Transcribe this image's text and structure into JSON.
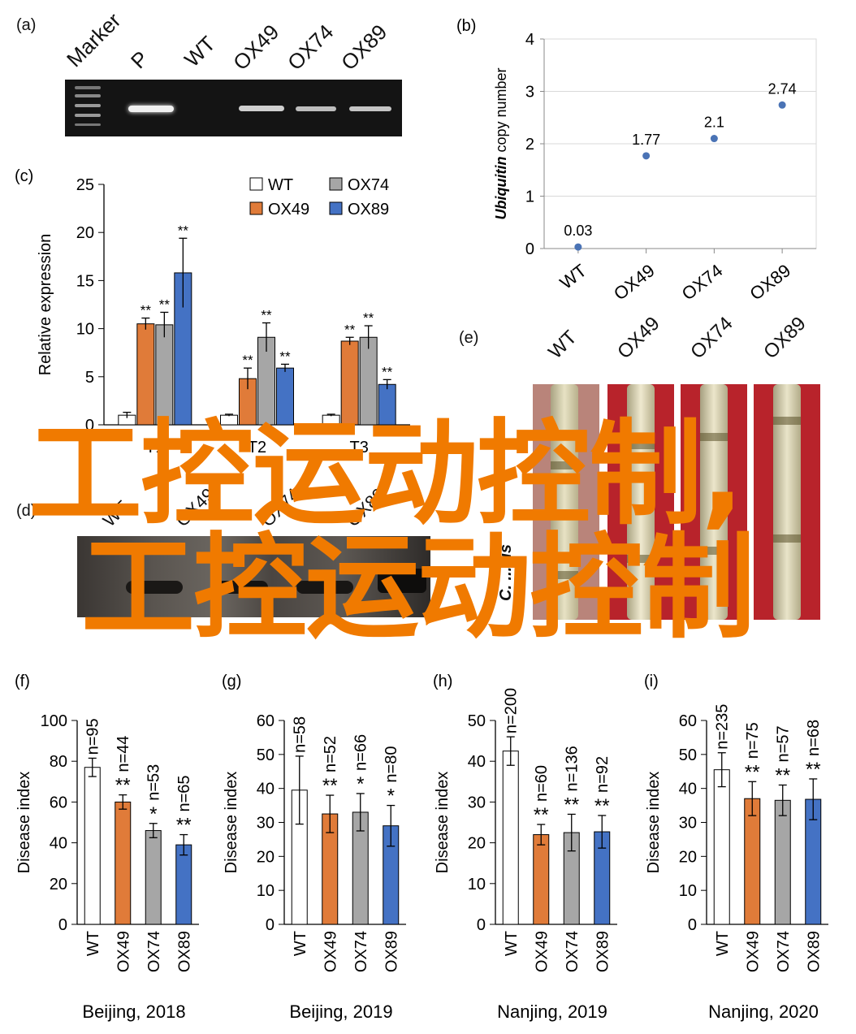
{
  "panel_a": {
    "tag": "(a)",
    "lanes": [
      "Marker",
      "P",
      "WT",
      "OX49",
      "OX74",
      "OX89"
    ]
  },
  "panel_d": {
    "tag": "(d)",
    "lanes": [
      "WT",
      "OX49",
      "OX74",
      "OX89"
    ]
  },
  "panel_e": {
    "tag": "(e)",
    "lanes": [
      "WT",
      "OX49",
      "OX74",
      "OX89"
    ],
    "side_label": "C. ... lis"
  },
  "watermark": {
    "line1": "工控运动控制,",
    "line2": "工控运动控制"
  },
  "colors": {
    "WT": "#ffffff",
    "OX49": "#e07b39",
    "OX74": "#a6a6a6",
    "OX89": "#4472c4",
    "point": "#4a73b5"
  },
  "chart_data": [
    {
      "id": "b",
      "tag": "(b)",
      "type": "scatter",
      "categories": [
        "WT",
        "OX49",
        "OX74",
        "OX89"
      ],
      "values": [
        0.03,
        1.77,
        2.1,
        2.74
      ],
      "data_labels": [
        "0.03",
        "1.77",
        "2.1",
        "2.74"
      ],
      "ylabel_italic": "Ubiquitin",
      "ylabel_rest": " copy number",
      "ylim": [
        0,
        4
      ],
      "yticks": [
        "0",
        "1",
        "2",
        "3",
        "4"
      ],
      "grid": true
    },
    {
      "id": "c",
      "tag": "(c)",
      "type": "bar",
      "groups": [
        "T1",
        "T2",
        "T3"
      ],
      "ylabel": "Relative expression",
      "ylim": [
        0,
        25
      ],
      "yticks": [
        "0",
        "5",
        "10",
        "15",
        "20",
        "25"
      ],
      "legend": [
        "WT",
        "OX74",
        "OX49",
        "OX89"
      ],
      "series": [
        {
          "name": "WT",
          "values": [
            1.0,
            1.0,
            1.0
          ],
          "errors": [
            0.3,
            0.1,
            0.1
          ],
          "sig": [
            "",
            "",
            ""
          ]
        },
        {
          "name": "OX49",
          "values": [
            10.5,
            4.8,
            8.7
          ],
          "errors": [
            0.6,
            1.1,
            0.4
          ],
          "sig": [
            "**",
            "**",
            "**"
          ]
        },
        {
          "name": "OX74",
          "values": [
            10.4,
            9.1,
            9.1
          ],
          "errors": [
            1.3,
            1.5,
            1.2
          ],
          "sig": [
            "**",
            "**",
            "**"
          ]
        },
        {
          "name": "OX89",
          "values": [
            15.8,
            5.9,
            4.2
          ],
          "errors": [
            3.6,
            0.4,
            0.5
          ],
          "sig": [
            "**",
            "**",
            "**"
          ]
        }
      ]
    },
    {
      "id": "f",
      "tag": "(f)",
      "type": "bar",
      "categories": [
        "WT",
        "OX49",
        "OX74",
        "OX89"
      ],
      "values": [
        77,
        60,
        46,
        39
      ],
      "errors": [
        4.5,
        3.5,
        3.5,
        5.0
      ],
      "n_labels": [
        "n=95",
        "n=44",
        "n=53",
        "n=65"
      ],
      "sig": [
        "",
        "**",
        "*",
        "**"
      ],
      "ylabel": "Disease index",
      "ylim": [
        0,
        100
      ],
      "yticks": [
        "0",
        "20",
        "40",
        "60",
        "80",
        "100"
      ],
      "xlabel": "Beijing, 2018"
    },
    {
      "id": "g",
      "tag": "(g)",
      "type": "bar",
      "categories": [
        "WT",
        "OX49",
        "OX74",
        "OX89"
      ],
      "values": [
        39.5,
        32.5,
        33,
        29
      ],
      "errors": [
        10,
        5.5,
        5.5,
        6
      ],
      "n_labels": [
        "n=58",
        "n=52",
        "n=66",
        "n=80"
      ],
      "sig": [
        "",
        "**",
        "*",
        "*"
      ],
      "ylabel": "Disease index",
      "ylim": [
        0,
        60
      ],
      "yticks": [
        "0",
        "10",
        "20",
        "30",
        "40",
        "50",
        "60"
      ],
      "xlabel": "Beijing, 2019"
    },
    {
      "id": "h",
      "tag": "(h)",
      "type": "bar",
      "categories": [
        "WT",
        "OX49",
        "OX74",
        "OX89"
      ],
      "values": [
        42.5,
        22,
        22.5,
        22.7
      ],
      "errors": [
        3.5,
        2.5,
        4.5,
        4
      ],
      "n_labels": [
        "n=200",
        "n=60",
        "n=136",
        "n=92"
      ],
      "sig": [
        "",
        "**",
        "**",
        "**"
      ],
      "ylabel": "Disease index",
      "ylim": [
        0,
        50
      ],
      "yticks": [
        "0",
        "10",
        "20",
        "30",
        "40",
        "50"
      ],
      "xlabel": "Nanjing, 2019"
    },
    {
      "id": "i",
      "tag": "(i)",
      "type": "bar",
      "categories": [
        "WT",
        "OX49",
        "OX74",
        "OX89"
      ],
      "values": [
        45.5,
        37,
        36.5,
        36.8
      ],
      "errors": [
        5,
        5,
        4.5,
        6
      ],
      "n_labels": [
        "n=235",
        "n=75",
        "n=57",
        "n=68"
      ],
      "sig": [
        "",
        "**",
        "**",
        "**"
      ],
      "ylabel": "Disease index",
      "ylim": [
        0,
        60
      ],
      "yticks": [
        "0",
        "10",
        "20",
        "30",
        "40",
        "50",
        "60"
      ],
      "xlabel": "Nanjing, 2020"
    }
  ]
}
